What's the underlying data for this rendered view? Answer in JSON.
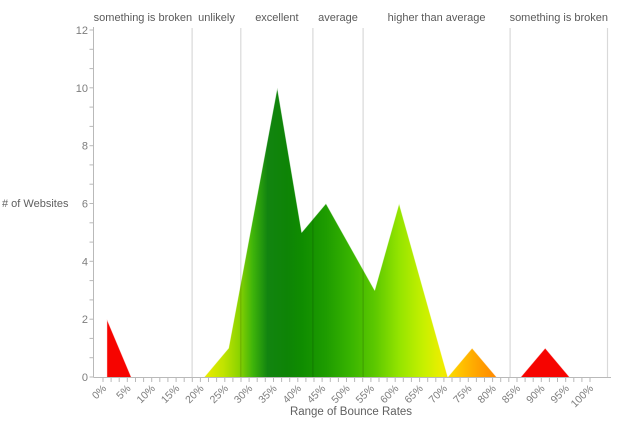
{
  "chart_data": {
    "type": "area",
    "title": "",
    "xlabel": "Range of Bounce Rates",
    "ylabel": "# of Websites",
    "x_tick_labels": [
      "0%",
      "5%",
      "10%",
      "15%",
      "20%",
      "25%",
      "30%",
      "35%",
      "40%",
      "45%",
      "50%",
      "55%",
      "60%",
      "65%",
      "70%",
      "75%",
      "80%",
      "85%",
      "90%",
      "95%",
      "100%"
    ],
    "x_tick_values": [
      0,
      5,
      10,
      15,
      20,
      25,
      30,
      35,
      40,
      45,
      50,
      55,
      60,
      65,
      70,
      75,
      80,
      85,
      90,
      95,
      100
    ],
    "y_tick_labels": [
      "0",
      "2",
      "4",
      "6",
      "8",
      "10",
      "12"
    ],
    "y_tick_values": [
      0,
      2,
      4,
      6,
      8,
      10,
      12
    ],
    "ylim": [
      0,
      12
    ],
    "xlim_percent": [
      -1.9,
      103.6
    ],
    "minor_tick_divisions": 3,
    "grid": false,
    "legend": "none",
    "points": [
      {
        "x": 0,
        "y": 2
      },
      {
        "x": 5,
        "y": 0
      },
      {
        "x": 10,
        "y": 0
      },
      {
        "x": 15,
        "y": 0
      },
      {
        "x": 20,
        "y": 0
      },
      {
        "x": 25,
        "y": 1
      },
      {
        "x": 35,
        "y": 10
      },
      {
        "x": 40,
        "y": 5
      },
      {
        "x": 45,
        "y": 6
      },
      {
        "x": 55,
        "y": 3
      },
      {
        "x": 60,
        "y": 6
      },
      {
        "x": 70,
        "y": 0
      },
      {
        "x": 75,
        "y": 1
      },
      {
        "x": 80,
        "y": 0
      },
      {
        "x": 85,
        "y": 0
      },
      {
        "x": 90,
        "y": 1
      },
      {
        "x": 95,
        "y": 0
      },
      {
        "x": 100,
        "y": 0
      }
    ],
    "point_offset_percent": 0.8,
    "regions": [
      {
        "label": "something is broken",
        "from": -1.9,
        "to": 18.3
      },
      {
        "label": "unlikely",
        "from": 18.3,
        "to": 28.3
      },
      {
        "label": "excellent",
        "from": 28.3,
        "to": 43.1
      },
      {
        "label": "average",
        "from": 43.1,
        "to": 53.4
      },
      {
        "label": "higher than average",
        "from": 53.4,
        "to": 83.6
      },
      {
        "label": "something is broken",
        "from": 83.6,
        "to": 103.6
      }
    ],
    "gradient_stops": [
      {
        "pct": 0,
        "color": "#f60400"
      },
      {
        "pct": 8,
        "color": "#f60400"
      },
      {
        "pct": 20,
        "color": "#ecec00"
      },
      {
        "pct": 24,
        "color": "#bfe300"
      },
      {
        "pct": 27,
        "color": "#8fd400"
      },
      {
        "pct": 30,
        "color": "#3eb40a"
      },
      {
        "pct": 33,
        "color": "#128410"
      },
      {
        "pct": 37,
        "color": "#0e8406"
      },
      {
        "pct": 40,
        "color": "#0f8c00"
      },
      {
        "pct": 45,
        "color": "#1e9c00"
      },
      {
        "pct": 50,
        "color": "#38b400"
      },
      {
        "pct": 55,
        "color": "#5cc800"
      },
      {
        "pct": 60,
        "color": "#94e400"
      },
      {
        "pct": 65,
        "color": "#c6f000"
      },
      {
        "pct": 69,
        "color": "#eeee00"
      },
      {
        "pct": 72,
        "color": "#ffc800"
      },
      {
        "pct": 76,
        "color": "#ffa400"
      },
      {
        "pct": 80,
        "color": "#ff8800"
      },
      {
        "pct": 85,
        "color": "#f60400"
      },
      {
        "pct": 100,
        "color": "#f60400"
      }
    ],
    "colors": {
      "background": "#ffffff",
      "axis_line": "#b9b9b9",
      "tick_mark": "#b9b9b9",
      "tick_label": "#7d7d7d",
      "axis_title": "#5f5f5f",
      "region_label": "#5a5a5a",
      "region_line": "rgba(0,0,0,0.15)",
      "red": "#f60400",
      "yellow": "#ecec00",
      "dark_green": "#0e8406",
      "light_green": "#94e400",
      "orange": "#ffa400"
    }
  }
}
